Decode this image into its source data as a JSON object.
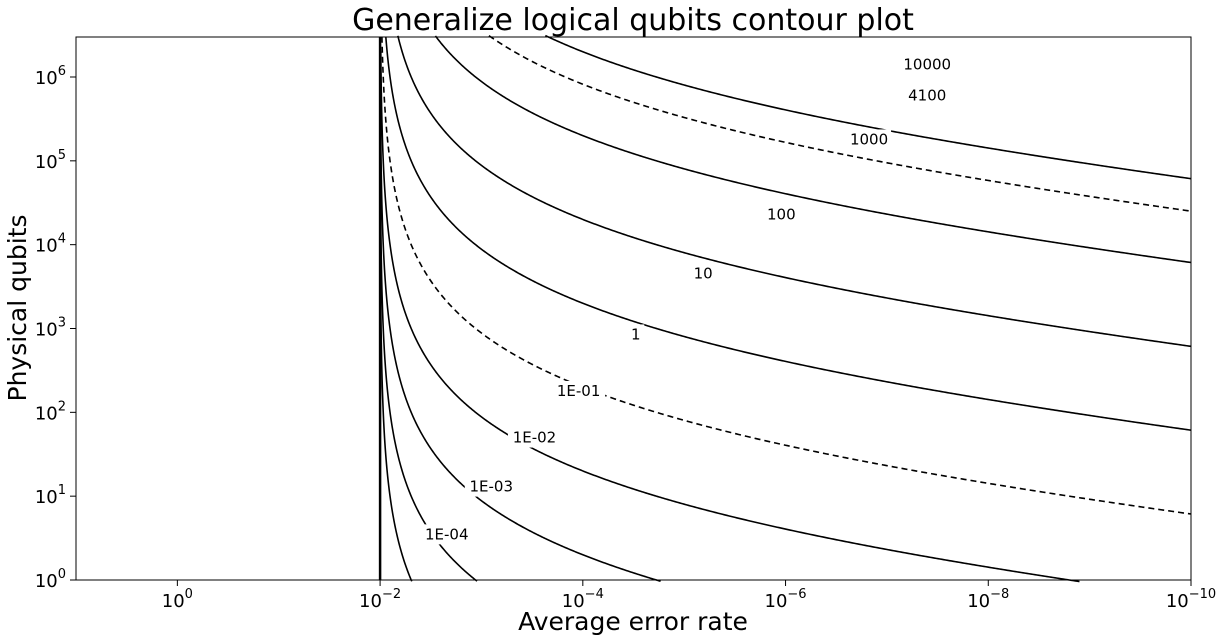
{
  "chart_data": {
    "type": "contour",
    "title": "Generalize logical qubits contour plot",
    "xlabel": "Average error rate",
    "ylabel": "Physical qubits",
    "x_scale": "log",
    "y_scale": "log",
    "x_inverted": true,
    "xlim": [
      10.0,
      1e-10
    ],
    "ylim": [
      1.0,
      3000000.0
    ],
    "grid": false,
    "threshold_error_rate": 0.01,
    "x_ticks": [
      {
        "base": "10",
        "exp": "0",
        "value": 1
      },
      {
        "base": "10",
        "exp": "−2",
        "value": 0.01
      },
      {
        "base": "10",
        "exp": "−4",
        "value": 0.0001
      },
      {
        "base": "10",
        "exp": "−6",
        "value": 1e-06
      },
      {
        "base": "10",
        "exp": "−8",
        "value": 1e-08
      },
      {
        "base": "10",
        "exp": "−10",
        "value": 1e-10
      }
    ],
    "y_ticks": [
      {
        "base": "10",
        "exp": "0",
        "value": 1
      },
      {
        "base": "10",
        "exp": "1",
        "value": 10
      },
      {
        "base": "10",
        "exp": "2",
        "value": 100
      },
      {
        "base": "10",
        "exp": "3",
        "value": 1000
      },
      {
        "base": "10",
        "exp": "4",
        "value": 10000
      },
      {
        "base": "10",
        "exp": "5",
        "value": 100000
      },
      {
        "base": "10",
        "exp": "6",
        "value": 1000000
      }
    ],
    "contours": [
      {
        "label": "1E-04",
        "level": 0.0001,
        "dashed": false,
        "at_x10_6": null,
        "label_x": 0.0022,
        "label_y": 3.5
      },
      {
        "label": "1E-03",
        "level": 0.001,
        "dashed": false,
        "at_x10_6": null,
        "label_x": 0.0008,
        "label_y": 13
      },
      {
        "label": "1E-02",
        "level": 0.01,
        "dashed": false,
        "at_x10_6": 1.5,
        "label_x": 0.0003,
        "label_y": 50
      },
      {
        "label": "1E-01",
        "level": 0.1,
        "dashed": false,
        "at_x10_6": 6,
        "label_x": 0.00011,
        "label_y": 180
      },
      {
        "label": "1",
        "level": 1,
        "dashed": true,
        "at_x10_6": 60,
        "label_x": 3e-05,
        "label_y": 850
      },
      {
        "label": "10",
        "level": 10,
        "dashed": false,
        "at_x10_6": 600,
        "label_x": 6.5e-06,
        "label_y": 4500
      },
      {
        "label": "100",
        "level": 100,
        "dashed": false,
        "at_x10_6": 6000,
        "label_x": 1.1e-06,
        "label_y": 23000
      },
      {
        "label": "1000",
        "level": 1000,
        "dashed": false,
        "at_x10_6": 60000,
        "label_x": 1.5e-07,
        "label_y": 180000
      },
      {
        "label": "4100",
        "level": 4100,
        "dashed": true,
        "at_x10_6": 250000,
        "label_x": 4e-08,
        "label_y": 600000
      },
      {
        "label": "10000",
        "level": 10000,
        "dashed": false,
        "at_x10_6": 600000,
        "label_x": 4e-08,
        "label_y": 1400000
      }
    ]
  }
}
